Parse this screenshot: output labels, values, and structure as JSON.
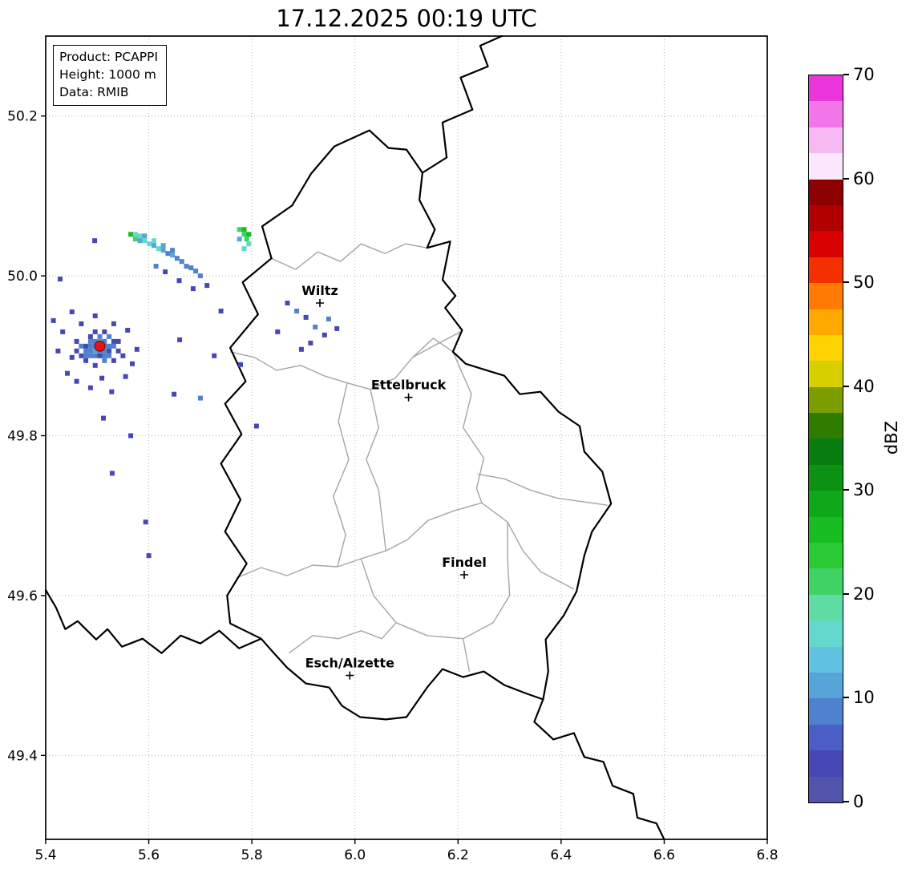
{
  "title": "17.12.2025 00:19 UTC",
  "info_box": {
    "lines": [
      "Product: PCAPPI",
      "Height: 1000 m",
      "Data: RMIB"
    ]
  },
  "chart_data": {
    "type": "heatmap",
    "title": "17.12.2025 00:19 UTC",
    "xlabel": "",
    "ylabel": "",
    "xlim": [
      5.4,
      6.8
    ],
    "ylim": [
      49.295,
      50.3
    ],
    "x_ticks": [
      "5.4",
      "5.6",
      "5.8",
      "6.0",
      "6.2",
      "6.4",
      "6.6",
      "6.8"
    ],
    "y_ticks": [
      "49.4",
      "49.6",
      "49.8",
      "50.0",
      "50.2"
    ],
    "grid": true,
    "colorbar": {
      "label": "dBZ",
      "min": 0,
      "max": 70,
      "step": 2.5,
      "ticks": [
        "0",
        "10",
        "20",
        "30",
        "40",
        "50",
        "60",
        "70"
      ],
      "colors": [
        "#5253aa",
        "#4747b6",
        "#4a5ec6",
        "#4f82cd",
        "#57a4d8",
        "#60c2de",
        "#65d8cd",
        "#5fdca4",
        "#3ed364",
        "#2aca35",
        "#17bc20",
        "#0fa81a",
        "#0b9214",
        "#087c0e",
        "#2e7d00",
        "#7d9e00",
        "#d8cf00",
        "#ffd300",
        "#ffa800",
        "#ff7a00",
        "#f43000",
        "#d80000",
        "#b00000",
        "#8c0000",
        "#fce7fc",
        "#f6b9f2",
        "#f176e9",
        "#e935da"
      ]
    },
    "radar_site": {
      "lon": 5.505,
      "lat": 49.912,
      "color": "#e21414"
    },
    "cities": [
      {
        "name": "Wiltz",
        "lon": 5.932,
        "lat": 49.966
      },
      {
        "name": "Ettelbruck",
        "lon": 6.104,
        "lat": 49.848
      },
      {
        "name": "Findel",
        "lon": 6.212,
        "lat": 49.626
      },
      {
        "name": "Esch/Alzette",
        "lon": 5.99,
        "lat": 49.5
      }
    ],
    "cells": [
      [
        5.469,
        49.9,
        4
      ],
      [
        5.478,
        49.9,
        9
      ],
      [
        5.487,
        49.9,
        9
      ],
      [
        5.496,
        49.9,
        9
      ],
      [
        5.505,
        49.9,
        4
      ],
      [
        5.514,
        49.9,
        9
      ],
      [
        5.523,
        49.9,
        9
      ],
      [
        5.46,
        49.906,
        4
      ],
      [
        5.478,
        49.906,
        9
      ],
      [
        5.487,
        49.906,
        9
      ],
      [
        5.496,
        49.906,
        12
      ],
      [
        5.505,
        49.906,
        9
      ],
      [
        5.514,
        49.906,
        9
      ],
      [
        5.523,
        49.906,
        4
      ],
      [
        5.541,
        49.906,
        4
      ],
      [
        5.469,
        49.912,
        9
      ],
      [
        5.478,
        49.912,
        4
      ],
      [
        5.487,
        49.912,
        9
      ],
      [
        5.496,
        49.912,
        9
      ],
      [
        5.514,
        49.912,
        9
      ],
      [
        5.523,
        49.912,
        9
      ],
      [
        5.532,
        49.912,
        9
      ],
      [
        5.46,
        49.918,
        4
      ],
      [
        5.487,
        49.918,
        9
      ],
      [
        5.496,
        49.918,
        9
      ],
      [
        5.505,
        49.918,
        12
      ],
      [
        5.514,
        49.918,
        9
      ],
      [
        5.532,
        49.918,
        4
      ],
      [
        5.487,
        49.924,
        4
      ],
      [
        5.505,
        49.924,
        9
      ],
      [
        5.523,
        49.924,
        9
      ],
      [
        5.496,
        49.93,
        4
      ],
      [
        5.514,
        49.93,
        4
      ],
      [
        5.451,
        49.898,
        4
      ],
      [
        5.478,
        49.894,
        4
      ],
      [
        5.496,
        49.888,
        4
      ],
      [
        5.514,
        49.894,
        9
      ],
      [
        5.532,
        49.894,
        4
      ],
      [
        5.55,
        49.9,
        4
      ],
      [
        5.541,
        49.918,
        4
      ],
      [
        5.433,
        49.93,
        4
      ],
      [
        5.442,
        49.878,
        4
      ],
      [
        5.46,
        49.868,
        4
      ],
      [
        5.487,
        49.86,
        4
      ],
      [
        5.509,
        49.872,
        4
      ],
      [
        5.528,
        49.855,
        4
      ],
      [
        5.469,
        49.94,
        4
      ],
      [
        5.496,
        49.95,
        4
      ],
      [
        5.451,
        49.955,
        4
      ],
      [
        5.532,
        49.94,
        4
      ],
      [
        5.555,
        49.874,
        4
      ],
      [
        5.568,
        49.89,
        4
      ],
      [
        5.577,
        49.908,
        4
      ],
      [
        5.559,
        49.932,
        4
      ],
      [
        5.424,
        49.906,
        4
      ],
      [
        5.415,
        49.944,
        4
      ],
      [
        5.512,
        49.822,
        4
      ],
      [
        5.529,
        49.753,
        4
      ],
      [
        5.594,
        49.692,
        4
      ],
      [
        5.6,
        49.65,
        4
      ],
      [
        5.565,
        49.8,
        4
      ],
      [
        5.649,
        49.852,
        4
      ],
      [
        5.7,
        49.847,
        9
      ],
      [
        5.778,
        49.889,
        4
      ],
      [
        5.809,
        49.812,
        4
      ],
      [
        5.727,
        49.9,
        4
      ],
      [
        5.66,
        49.92,
        4
      ],
      [
        5.428,
        49.996,
        4
      ],
      [
        5.495,
        50.044,
        4
      ],
      [
        5.565,
        50.052,
        27
      ],
      [
        5.574,
        50.052,
        16
      ],
      [
        5.574,
        50.046,
        22
      ],
      [
        5.583,
        50.05,
        16
      ],
      [
        5.583,
        50.044,
        12
      ],
      [
        5.592,
        50.05,
        12
      ],
      [
        5.592,
        50.044,
        16
      ],
      [
        5.601,
        50.04,
        16
      ],
      [
        5.61,
        50.044,
        16
      ],
      [
        5.61,
        50.038,
        12
      ],
      [
        5.619,
        50.034,
        16
      ],
      [
        5.628,
        50.038,
        12
      ],
      [
        5.628,
        50.032,
        12
      ],
      [
        5.637,
        50.028,
        9
      ],
      [
        5.646,
        50.032,
        9
      ],
      [
        5.646,
        50.026,
        12
      ],
      [
        5.655,
        50.022,
        9
      ],
      [
        5.664,
        50.018,
        9
      ],
      [
        5.673,
        50.012,
        9
      ],
      [
        5.682,
        50.01,
        9
      ],
      [
        5.691,
        50.006,
        9
      ],
      [
        5.7,
        50.0,
        9
      ],
      [
        5.614,
        50.012,
        9
      ],
      [
        5.632,
        50.005,
        4
      ],
      [
        5.659,
        49.994,
        4
      ],
      [
        5.686,
        49.984,
        4
      ],
      [
        5.713,
        49.988,
        4
      ],
      [
        5.74,
        49.956,
        4
      ],
      [
        5.776,
        50.058,
        22
      ],
      [
        5.785,
        50.058,
        27
      ],
      [
        5.785,
        50.052,
        22
      ],
      [
        5.794,
        50.052,
        27
      ],
      [
        5.79,
        50.046,
        22
      ],
      [
        5.794,
        50.04,
        16
      ],
      [
        5.785,
        50.034,
        16
      ],
      [
        5.776,
        50.046,
        12
      ],
      [
        5.887,
        49.956,
        9
      ],
      [
        5.905,
        49.948,
        4
      ],
      [
        5.923,
        49.936,
        9
      ],
      [
        5.941,
        49.926,
        4
      ],
      [
        5.914,
        49.916,
        4
      ],
      [
        5.896,
        49.908,
        4
      ],
      [
        5.869,
        49.966,
        4
      ],
      [
        5.85,
        49.93,
        4
      ],
      [
        5.949,
        49.946,
        9
      ],
      [
        5.965,
        49.934,
        4
      ]
    ]
  },
  "map": {
    "country_border_color": "#000000",
    "district_border_color": "#a5a5a5",
    "luxembourg_border": [
      [
        6.028,
        50.182
      ],
      [
        6.065,
        50.16
      ],
      [
        6.1,
        50.158
      ],
      [
        6.131,
        50.129
      ],
      [
        6.125,
        50.095
      ],
      [
        6.155,
        50.058
      ],
      [
        6.14,
        50.035
      ],
      [
        6.185,
        50.043
      ],
      [
        6.17,
        49.995
      ],
      [
        6.195,
        49.975
      ],
      [
        6.175,
        49.96
      ],
      [
        6.208,
        49.932
      ],
      [
        6.19,
        49.905
      ],
      [
        6.215,
        49.89
      ],
      [
        6.255,
        49.882
      ],
      [
        6.29,
        49.875
      ],
      [
        6.32,
        49.852
      ],
      [
        6.36,
        49.855
      ],
      [
        6.395,
        49.83
      ],
      [
        6.436,
        49.812
      ],
      [
        6.445,
        49.78
      ],
      [
        6.48,
        49.755
      ],
      [
        6.497,
        49.715
      ],
      [
        6.46,
        49.68
      ],
      [
        6.445,
        49.65
      ],
      [
        6.43,
        49.605
      ],
      [
        6.405,
        49.575
      ],
      [
        6.37,
        49.545
      ],
      [
        6.375,
        49.505
      ],
      [
        6.365,
        49.47
      ],
      [
        6.33,
        49.478
      ],
      [
        6.29,
        49.488
      ],
      [
        6.25,
        49.505
      ],
      [
        6.21,
        49.498
      ],
      [
        6.17,
        49.508
      ],
      [
        6.14,
        49.485
      ],
      [
        6.1,
        49.448
      ],
      [
        6.06,
        49.445
      ],
      [
        6.01,
        49.448
      ],
      [
        5.975,
        49.462
      ],
      [
        5.95,
        49.485
      ],
      [
        5.905,
        49.49
      ],
      [
        5.868,
        49.51
      ],
      [
        5.84,
        49.53
      ],
      [
        5.818,
        49.546
      ],
      [
        5.79,
        49.555
      ],
      [
        5.758,
        49.565
      ],
      [
        5.752,
        49.6
      ],
      [
        5.79,
        49.64
      ],
      [
        5.748,
        49.68
      ],
      [
        5.778,
        49.72
      ],
      [
        5.74,
        49.765
      ],
      [
        5.78,
        49.802
      ],
      [
        5.748,
        49.84
      ],
      [
        5.788,
        49.868
      ],
      [
        5.758,
        49.91
      ],
      [
        5.812,
        49.952
      ],
      [
        5.782,
        49.992
      ],
      [
        5.838,
        50.022
      ],
      [
        5.82,
        50.062
      ],
      [
        5.878,
        50.088
      ],
      [
        5.915,
        50.128
      ],
      [
        5.96,
        50.162
      ],
      [
        6.028,
        50.182
      ]
    ],
    "neighbor_borders": [
      [
        [
          6.131,
          50.129
        ],
        [
          6.178,
          50.148
        ],
        [
          6.17,
          50.192
        ],
        [
          6.228,
          50.208
        ],
        [
          6.205,
          50.248
        ],
        [
          6.258,
          50.262
        ],
        [
          6.243,
          50.288
        ],
        [
          6.285,
          50.3
        ]
      ],
      [
        [
          5.818,
          49.546
        ],
        [
          5.775,
          49.534
        ],
        [
          5.737,
          49.556
        ],
        [
          5.7,
          49.54
        ],
        [
          5.662,
          49.55
        ],
        [
          5.625,
          49.528
        ],
        [
          5.588,
          49.546
        ],
        [
          5.548,
          49.536
        ],
        [
          5.52,
          49.558
        ],
        [
          5.498,
          49.545
        ],
        [
          5.462,
          49.568
        ],
        [
          5.438,
          49.558
        ],
        [
          5.42,
          49.585
        ],
        [
          5.4,
          49.607
        ]
      ],
      [
        [
          6.365,
          49.47
        ],
        [
          6.348,
          49.442
        ],
        [
          6.385,
          49.42
        ],
        [
          6.425,
          49.428
        ],
        [
          6.445,
          49.398
        ],
        [
          6.482,
          49.392
        ],
        [
          6.5,
          49.362
        ],
        [
          6.54,
          49.352
        ],
        [
          6.548,
          49.322
        ],
        [
          6.585,
          49.315
        ],
        [
          6.6,
          49.295
        ]
      ]
    ],
    "district_borders": [
      [
        [
          5.838,
          50.022
        ],
        [
          5.885,
          50.008
        ],
        [
          5.928,
          50.03
        ],
        [
          5.972,
          50.018
        ],
        [
          6.012,
          50.04
        ],
        [
          6.058,
          50.028
        ],
        [
          6.098,
          50.04
        ],
        [
          6.14,
          50.035
        ]
      ],
      [
        [
          5.758,
          49.905
        ],
        [
          5.805,
          49.898
        ],
        [
          5.848,
          49.882
        ],
        [
          5.895,
          49.888
        ],
        [
          5.94,
          49.875
        ],
        [
          5.985,
          49.866
        ],
        [
          6.03,
          49.858
        ],
        [
          6.078,
          49.872
        ],
        [
          6.112,
          49.898
        ],
        [
          6.152,
          49.922
        ],
        [
          6.19,
          49.905
        ]
      ],
      [
        [
          5.985,
          49.866
        ],
        [
          5.968,
          49.818
        ],
        [
          5.988,
          49.77
        ],
        [
          5.958,
          49.724
        ],
        [
          5.982,
          49.676
        ],
        [
          5.966,
          49.636
        ]
      ],
      [
        [
          5.77,
          49.622
        ],
        [
          5.818,
          49.635
        ],
        [
          5.868,
          49.625
        ],
        [
          5.918,
          49.638
        ],
        [
          5.966,
          49.636
        ],
        [
          6.012,
          49.646
        ],
        [
          6.06,
          49.656
        ],
        [
          6.102,
          49.67
        ],
        [
          6.142,
          49.694
        ],
        [
          6.192,
          49.706
        ],
        [
          6.246,
          49.716
        ],
        [
          6.296,
          49.692
        ],
        [
          6.326,
          49.656
        ],
        [
          6.36,
          49.63
        ],
        [
          6.425,
          49.608
        ]
      ],
      [
        [
          6.012,
          49.646
        ],
        [
          6.036,
          49.6
        ],
        [
          6.08,
          49.566
        ],
        [
          6.14,
          49.55
        ],
        [
          6.21,
          49.546
        ],
        [
          6.268,
          49.566
        ],
        [
          6.3,
          49.6
        ],
        [
          6.296,
          49.648
        ],
        [
          6.296,
          49.692
        ]
      ],
      [
        [
          5.872,
          49.528
        ],
        [
          5.918,
          49.55
        ],
        [
          5.968,
          49.546
        ],
        [
          6.012,
          49.556
        ],
        [
          6.052,
          49.546
        ],
        [
          6.08,
          49.566
        ]
      ],
      [
        [
          6.19,
          49.905
        ],
        [
          6.226,
          49.852
        ],
        [
          6.21,
          49.81
        ],
        [
          6.25,
          49.772
        ],
        [
          6.236,
          49.734
        ],
        [
          6.246,
          49.716
        ]
      ],
      [
        [
          6.238,
          49.752
        ],
        [
          6.29,
          49.746
        ],
        [
          6.34,
          49.732
        ],
        [
          6.392,
          49.722
        ],
        [
          6.49,
          49.713
        ]
      ],
      [
        [
          6.03,
          49.858
        ],
        [
          6.046,
          49.81
        ],
        [
          6.022,
          49.77
        ],
        [
          6.046,
          49.732
        ],
        [
          6.06,
          49.656
        ]
      ],
      [
        [
          6.112,
          49.898
        ],
        [
          6.152,
          49.912
        ],
        [
          6.205,
          49.93
        ]
      ],
      [
        [
          6.21,
          49.546
        ],
        [
          6.222,
          49.505
        ]
      ]
    ]
  }
}
